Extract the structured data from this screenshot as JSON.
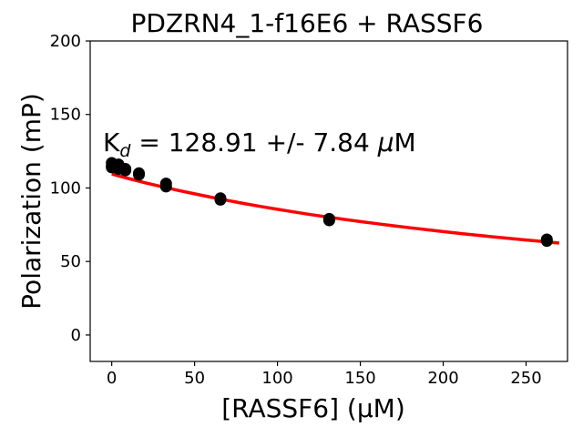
{
  "chart_data": {
    "type": "scatter",
    "title": "PDZRN4_1-f16E6 + RASSF6",
    "xlabel": "[RASSF6] (µM)",
    "ylabel": "Polarization (mP)",
    "xlim": [
      -13,
      275
    ],
    "ylim": [
      -18,
      200
    ],
    "xticks": [
      0,
      50,
      100,
      150,
      200,
      250
    ],
    "yticks": [
      0,
      50,
      100,
      150,
      200
    ],
    "grid": false,
    "annotation": {
      "k": "K",
      "sub": "d",
      "rest": " = 128.91 +/- 7.84 ",
      "mu": "μ",
      "unit": "M"
    },
    "series": [
      {
        "kind": "points",
        "color": "#000000",
        "x": [
          0,
          0,
          0,
          4.1,
          4.1,
          8.2,
          8.2,
          16.4,
          16.4,
          32.8,
          32.8,
          65.6,
          65.6,
          131.2,
          131.2,
          262.5,
          262.5
        ],
        "y": [
          117,
          115,
          114,
          116,
          113,
          113,
          112,
          110,
          109,
          103,
          101,
          93,
          92,
          79,
          78,
          65,
          64
        ]
      },
      {
        "kind": "fit",
        "color": "#ff0000",
        "x": [
          0,
          10,
          20,
          30,
          40,
          50,
          60,
          70,
          80,
          90,
          100,
          110,
          120,
          130,
          140,
          150,
          160,
          170,
          180,
          190,
          200,
          210,
          220,
          230,
          240,
          250,
          260,
          270
        ],
        "y": [
          109.5,
          106.5,
          103.6,
          101.0,
          98.4,
          96.0,
          93.7,
          91.5,
          89.4,
          87.4,
          85.5,
          83.7,
          81.9,
          80.3,
          78.7,
          77.1,
          75.7,
          74.3,
          72.9,
          71.6,
          70.3,
          69.1,
          67.9,
          66.8,
          65.7,
          64.6,
          63.6,
          62.5
        ]
      }
    ]
  }
}
